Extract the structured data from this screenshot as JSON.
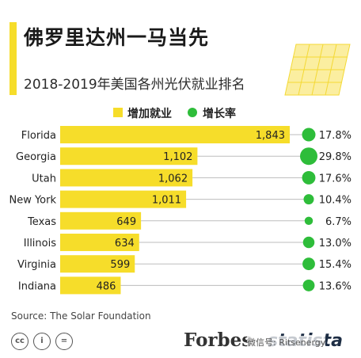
{
  "header": {
    "title": "佛罗里达州一马当先",
    "subtitle": "2018-2019年美国各州光伏就业排名"
  },
  "legend": {
    "jobs_label": "增加就业",
    "growth_label": "增长率"
  },
  "colors": {
    "accent": "#f6dd2a",
    "bar": "#f6dd2a",
    "bubble": "#2ebd3a",
    "line": "#bdbdbd"
  },
  "chart_data": {
    "type": "bar",
    "orientation": "horizontal",
    "title": "2018-2019年美国各州光伏就业排名",
    "categories": [
      "Florida",
      "Georgia",
      "Utah",
      "New York",
      "Texas",
      "Illinois",
      "Virginia",
      "Indiana"
    ],
    "series": [
      {
        "name": "增加就业",
        "values": [
          1843,
          1102,
          1062,
          1011,
          649,
          634,
          599,
          486
        ]
      },
      {
        "name": "增长率",
        "values": [
          17.8,
          29.8,
          17.6,
          10.4,
          6.7,
          13.0,
          15.4,
          13.6
        ]
      }
    ],
    "growth_labels": [
      "17.8%",
      "29.8%",
      "17.6%",
      "10.4%",
      "6.7%",
      "13.0%",
      "15.4%",
      "13.6%"
    ],
    "value_labels": [
      "1,843",
      "1,102",
      "1,062",
      "1,011",
      "649",
      "634",
      "599",
      "486"
    ],
    "legend_position": "top"
  },
  "source": "Source: The Solar Foundation",
  "footer": {
    "cc_icons": [
      "cc",
      "by",
      "nd"
    ],
    "cc_glyphs": [
      "cc",
      "i",
      "="
    ],
    "forbes": "Forbes",
    "statista": "statista",
    "watermark": "微信号: Ritsenergy"
  }
}
